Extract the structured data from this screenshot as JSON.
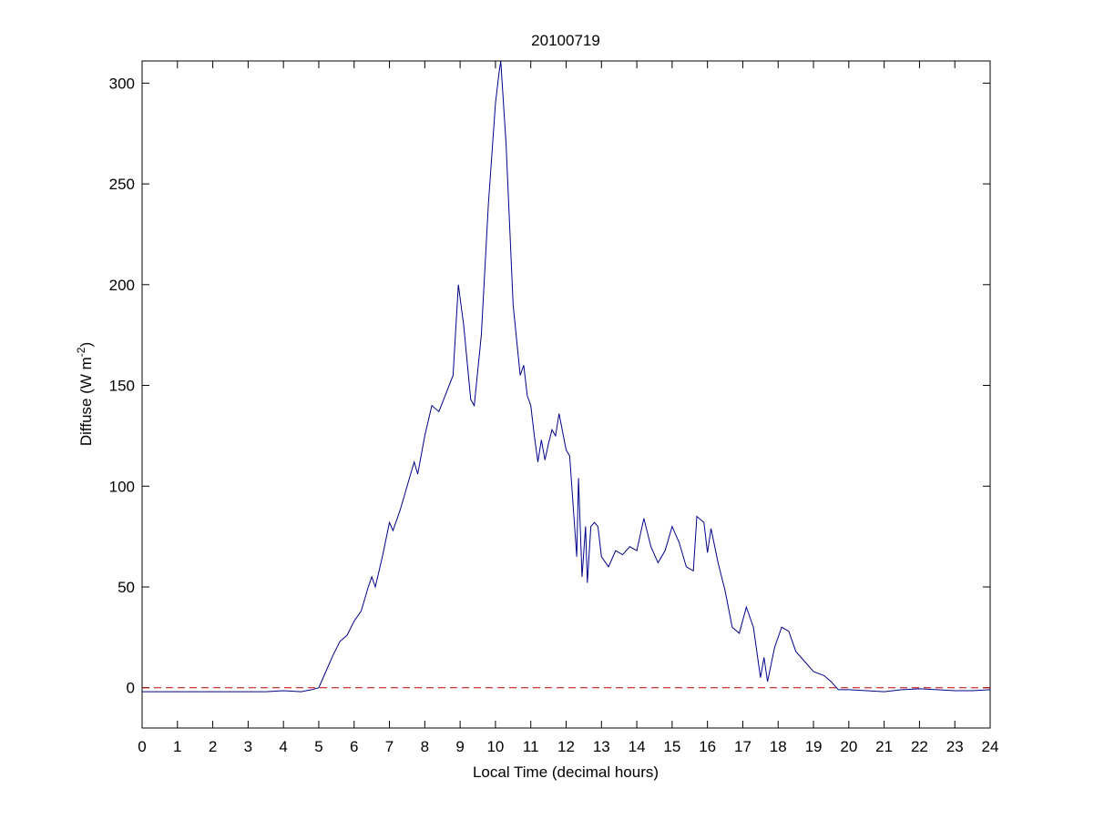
{
  "chart_data": {
    "type": "line",
    "title": "20100719",
    "xlabel": "Local Time (decimal hours)",
    "ylabel_parts": [
      "Diffuse (W m",
      "-2",
      ")"
    ],
    "x": [
      0,
      1,
      2,
      3,
      3.5,
      4,
      4.5,
      4.8,
      5.0,
      5.2,
      5.4,
      5.6,
      5.8,
      6.0,
      6.2,
      6.4,
      6.5,
      6.6,
      6.8,
      7.0,
      7.1,
      7.3,
      7.5,
      7.7,
      7.8,
      8.0,
      8.2,
      8.4,
      8.6,
      8.8,
      8.95,
      9.1,
      9.3,
      9.4,
      9.6,
      9.8,
      10.0,
      10.1,
      10.15,
      10.3,
      10.5,
      10.7,
      10.8,
      10.9,
      11.0,
      11.1,
      11.2,
      11.3,
      11.4,
      11.5,
      11.6,
      11.7,
      11.8,
      12.0,
      12.1,
      12.2,
      12.3,
      12.35,
      12.45,
      12.55,
      12.6,
      12.7,
      12.8,
      12.9,
      13.0,
      13.2,
      13.4,
      13.6,
      13.8,
      14.0,
      14.2,
      14.4,
      14.6,
      14.8,
      15.0,
      15.2,
      15.4,
      15.6,
      15.7,
      15.9,
      16.0,
      16.1,
      16.3,
      16.5,
      16.7,
      16.9,
      17.1,
      17.3,
      17.5,
      17.6,
      17.7,
      17.9,
      18.1,
      18.3,
      18.5,
      18.8,
      19.0,
      19.3,
      19.5,
      19.7,
      20,
      20.5,
      21,
      21.5,
      22,
      22.5,
      23,
      23.5,
      24
    ],
    "series": [
      {
        "color": "#00008b",
        "values": [
          -2,
          -2,
          -2,
          -2,
          -2,
          -1.5,
          -2,
          -1,
          0,
          8,
          16,
          23,
          26,
          33,
          38,
          50,
          55,
          50,
          65,
          82,
          78,
          88,
          100,
          112,
          106,
          125,
          140,
          137,
          146,
          155,
          200,
          180,
          143,
          140,
          175,
          240,
          290,
          305,
          311,
          270,
          190,
          155,
          160,
          145,
          140,
          125,
          112,
          123,
          113,
          121,
          128,
          125,
          136,
          118,
          115,
          90,
          65,
          104,
          55,
          80,
          52,
          80,
          82,
          80,
          65,
          60,
          68,
          66,
          70,
          68,
          84,
          70,
          62,
          68,
          80,
          72,
          60,
          58,
          85,
          82,
          67,
          79,
          62,
          48,
          30,
          27,
          40,
          30,
          5,
          15,
          3,
          20,
          30,
          28,
          18,
          12,
          8,
          6,
          3,
          -1,
          -1,
          -1.5,
          -2,
          -1,
          -0.5,
          -1,
          -1.5,
          -1.5,
          -1
        ]
      }
    ],
    "hline": {
      "value": 0,
      "color": "#c00000"
    },
    "xlim": [
      0,
      24
    ],
    "xticks": [
      0,
      1,
      2,
      3,
      4,
      5,
      6,
      7,
      8,
      9,
      10,
      11,
      12,
      13,
      14,
      15,
      16,
      17,
      18,
      19,
      20,
      21,
      22,
      23,
      24
    ],
    "ylim": [
      -20,
      311
    ],
    "yticks": [
      0,
      50,
      100,
      150,
      200,
      250,
      300
    ]
  }
}
